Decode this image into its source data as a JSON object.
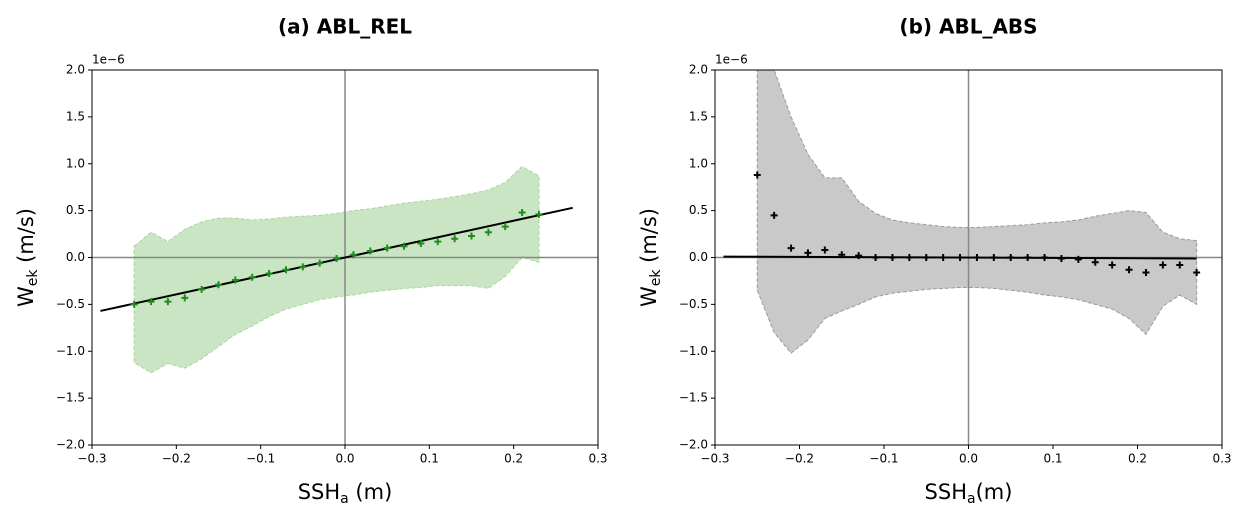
{
  "chart_data": [
    {
      "type": "scatter",
      "title": "(a) ABL_REL",
      "offset_text": "1e−6",
      "x_label": {
        "main": "SSH",
        "sub": "a",
        "rest": " (m)"
      },
      "y_label": {
        "main": "W",
        "sub": "ek",
        "rest": " (m/s)"
      },
      "xlim": [
        -0.3,
        0.3
      ],
      "ylim": [
        -2,
        2
      ],
      "xticks": [
        {
          "value": -0.3,
          "label": "−0.3"
        },
        {
          "value": -0.2,
          "label": "−0.2"
        },
        {
          "value": -0.1,
          "label": "−0.1"
        },
        {
          "value": 0,
          "label": "0.0"
        },
        0.1,
        0.2,
        0.3
      ],
      "yticks": [
        {
          "value": -2,
          "label": "−2.0"
        },
        {
          "value": -1.5,
          "label": "−1.5"
        },
        {
          "value": -1,
          "label": "−1.0"
        },
        {
          "value": -0.5,
          "label": "−0.5"
        },
        {
          "value": 0,
          "label": "0.0"
        },
        0.5,
        {
          "value": 1,
          "label": "1.0"
        },
        1.5,
        {
          "value": 2,
          "label": "2.0"
        }
      ],
      "x": [
        -0.25,
        -0.23,
        -0.21,
        -0.19,
        -0.17,
        -0.15,
        -0.13,
        -0.11,
        -0.09,
        -0.07,
        -0.05,
        -0.03,
        -0.01,
        0.01,
        0.03,
        0.05,
        0.07,
        0.09,
        0.11,
        0.13,
        0.15,
        0.17,
        0.19,
        0.21,
        0.23
      ],
      "values": [
        -0.5,
        -0.47,
        -0.47,
        -0.43,
        -0.34,
        -0.29,
        -0.24,
        -0.21,
        -0.17,
        -0.13,
        -0.1,
        -0.06,
        -0.01,
        0.03,
        0.07,
        0.1,
        0.12,
        0.15,
        0.17,
        0.2,
        0.23,
        0.27,
        0.33,
        0.48,
        0.46
      ],
      "upper": [
        0.12,
        0.27,
        0.17,
        0.3,
        0.38,
        0.42,
        0.42,
        0.4,
        0.41,
        0.43,
        0.44,
        0.45,
        0.47,
        0.5,
        0.52,
        0.55,
        0.58,
        0.6,
        0.62,
        0.65,
        0.68,
        0.72,
        0.8,
        0.97,
        0.87
      ],
      "lower": [
        -1.12,
        -1.23,
        -1.13,
        -1.18,
        -1.08,
        -0.95,
        -0.82,
        -0.73,
        -0.63,
        -0.55,
        -0.5,
        -0.45,
        -0.42,
        -0.4,
        -0.37,
        -0.35,
        -0.33,
        -0.32,
        -0.3,
        -0.3,
        -0.3,
        -0.33,
        -0.2,
        0.0,
        -0.05
      ],
      "fit": {
        "x": [
          -0.29,
          0.27
        ],
        "y": [
          -0.57,
          0.53
        ]
      },
      "color": "#1e8c1e",
      "band_color": "#c9e5c3",
      "band_edge": "#a9d6a0",
      "fit_color": "#000000"
    },
    {
      "type": "scatter",
      "title": "(b) ABL_ABS",
      "offset_text": "1e−6",
      "x_label": {
        "main": "SSH",
        "sub": "a",
        "rest": "(m)"
      },
      "y_label": {
        "main": "W",
        "sub": "ek",
        "rest": " (m/s)"
      },
      "xlim": [
        -0.3,
        0.3
      ],
      "ylim": [
        -2,
        2
      ],
      "xticks": [
        {
          "value": -0.3,
          "label": "−0.3"
        },
        {
          "value": -0.2,
          "label": "−0.2"
        },
        {
          "value": -0.1,
          "label": "−0.1"
        },
        {
          "value": 0,
          "label": "0.0"
        },
        0.1,
        0.2,
        0.3
      ],
      "yticks": [
        {
          "value": -2,
          "label": "−2.0"
        },
        {
          "value": -1.5,
          "label": "−1.5"
        },
        {
          "value": -1,
          "label": "−1.0"
        },
        {
          "value": -0.5,
          "label": "−0.5"
        },
        {
          "value": 0,
          "label": "0.0"
        },
        0.5,
        {
          "value": 1,
          "label": "1.0"
        },
        1.5,
        {
          "value": 2,
          "label": "2.0"
        }
      ],
      "x": [
        -0.25,
        -0.23,
        -0.21,
        -0.19,
        -0.17,
        -0.15,
        -0.13,
        -0.11,
        -0.09,
        -0.07,
        -0.05,
        -0.03,
        -0.01,
        0.01,
        0.03,
        0.05,
        0.07,
        0.09,
        0.11,
        0.13,
        0.15,
        0.17,
        0.19,
        0.21,
        0.23,
        0.25,
        0.27
      ],
      "values": [
        0.88,
        0.45,
        0.1,
        0.05,
        0.08,
        0.03,
        0.02,
        0.0,
        0.0,
        0.0,
        0.0,
        0.0,
        0.0,
        0.0,
        0.0,
        0.0,
        0.0,
        0.0,
        -0.01,
        -0.02,
        -0.05,
        -0.08,
        -0.13,
        -0.16,
        -0.08,
        -0.08,
        -0.16
      ],
      "upper": [
        2.0,
        2.0,
        1.5,
        1.1,
        0.85,
        0.85,
        0.6,
        0.47,
        0.4,
        0.37,
        0.35,
        0.33,
        0.32,
        0.32,
        0.33,
        0.34,
        0.35,
        0.37,
        0.38,
        0.4,
        0.44,
        0.47,
        0.5,
        0.48,
        0.27,
        0.2,
        0.18
      ],
      "lower": [
        -0.35,
        -0.8,
        -1.02,
        -0.88,
        -0.65,
        -0.57,
        -0.5,
        -0.42,
        -0.38,
        -0.36,
        -0.34,
        -0.33,
        -0.32,
        -0.32,
        -0.33,
        -0.35,
        -0.37,
        -0.4,
        -0.42,
        -0.45,
        -0.5,
        -0.55,
        -0.65,
        -0.82,
        -0.52,
        -0.4,
        -0.5
      ],
      "fit": {
        "x": [
          -0.29,
          0.27
        ],
        "y": [
          0.01,
          -0.01
        ]
      },
      "color": "#000000",
      "band_color": "#c9c9c9",
      "band_edge": "#9a9a9a",
      "fit_color": "#000000"
    }
  ]
}
